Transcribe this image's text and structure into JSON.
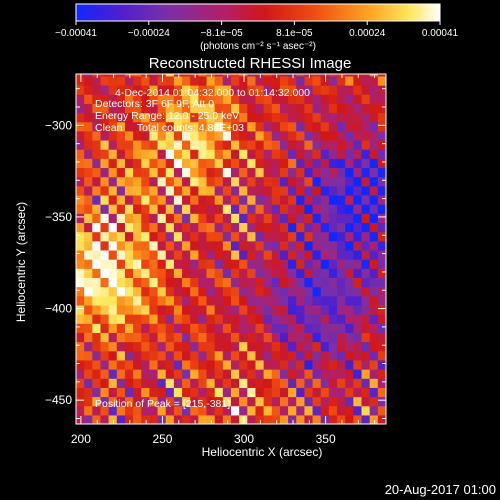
{
  "chart_data": {
    "type": "heatmap",
    "title": "Reconstructed RHESSI Image",
    "xlabel": "Heliocentric X (arcsec)",
    "ylabel": "Heliocentric Y (arcsec)",
    "xlim": [
      197,
      387
    ],
    "ylim": [
      -463,
      -272
    ],
    "x_ticks": [
      200,
      250,
      300,
      350
    ],
    "y_ticks": [
      -300,
      -350,
      -400,
      -450
    ],
    "x_tick_labels": [
      "200",
      "250",
      "300",
      "350"
    ],
    "y_tick_labels": [
      "−300",
      "−350",
      "−400",
      "−450"
    ],
    "colorbar": {
      "tick_labels": [
        "−0.00041",
        "−0.00024",
        "−8.1e−05",
        "8.1e−05",
        "0.00024",
        "0.00041"
      ],
      "unit_label": "(photons cm⁻² s⁻¹ asec⁻²)",
      "range": [
        -0.00041,
        0.00041
      ],
      "colormap": [
        "#1028ff",
        "#4d1fd0",
        "#7a2fa8",
        "#b0206a",
        "#d11818",
        "#ef4a10",
        "#ffa020",
        "#ffe860",
        "#ffffff"
      ]
    },
    "annotations": [
      "4-Dec-2014 01:04:32.000 to 01:14:32.000",
      "Detectors: 3F 6F 9F, Att 0",
      "Energy Range: 12.0 - 25.0 keV",
      "Clean     Total counts: 4.88E+03",
      "Position of Peak = [215,-381]"
    ],
    "peak": {
      "x": 215,
      "y": -381
    },
    "hot_regions": [
      {
        "x": 215,
        "y": -381,
        "level": 0.9
      },
      {
        "x": 270,
        "y": -303,
        "level": 0.75
      },
      {
        "x": 240,
        "y": -330,
        "level": 0.55
      },
      {
        "x": 300,
        "y": -450,
        "level": 0.6
      }
    ],
    "cold_regions": [
      {
        "x": 370,
        "y": -340,
        "level": 0.15
      },
      {
        "x": 345,
        "y": -400,
        "level": 0.25
      }
    ],
    "grid": false
  },
  "footer": {
    "timestamp": "20-Aug-2017 01:00"
  }
}
